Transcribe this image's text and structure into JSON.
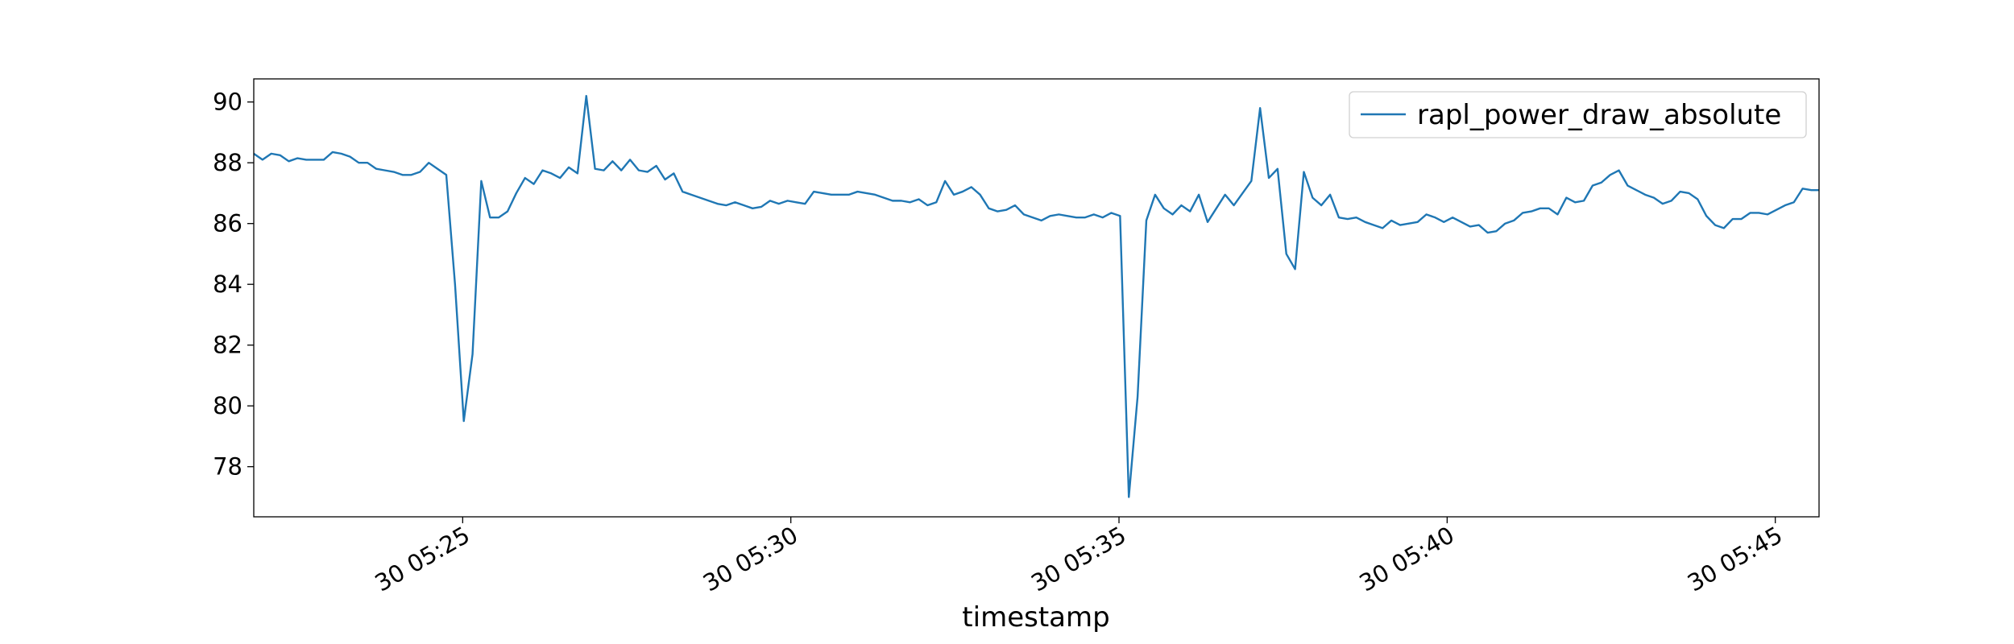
{
  "chart_data": {
    "type": "line",
    "xlabel": "timestamp",
    "legend": "upper right",
    "x": [
      "30 05:21:49",
      "30 05:21:57",
      "30 05:22:05",
      "30 05:22:13",
      "30 05:22:21",
      "30 05:22:29",
      "30 05:22:37",
      "30 05:22:45",
      "30 05:22:53",
      "30 05:23:01",
      "30 05:23:09",
      "30 05:23:17",
      "30 05:23:25",
      "30 05:23:33",
      "30 05:23:41",
      "30 05:23:49",
      "30 05:23:57",
      "30 05:24:05",
      "30 05:24:13",
      "30 05:24:21",
      "30 05:24:29",
      "30 05:24:37",
      "30 05:24:45",
      "30 05:24:53",
      "30 05:25:01",
      "30 05:25:09",
      "30 05:25:17",
      "30 05:25:25",
      "30 05:25:33",
      "30 05:25:41",
      "30 05:25:49",
      "30 05:25:57",
      "30 05:26:05",
      "30 05:26:13",
      "30 05:26:21",
      "30 05:26:29",
      "30 05:26:37",
      "30 05:26:45",
      "30 05:26:53",
      "30 05:27:01",
      "30 05:27:09",
      "30 05:27:17",
      "30 05:27:25",
      "30 05:27:33",
      "30 05:27:41",
      "30 05:27:49",
      "30 05:27:57",
      "30 05:28:05",
      "30 05:28:13",
      "30 05:28:21",
      "30 05:28:29",
      "30 05:28:37",
      "30 05:28:45",
      "30 05:28:53",
      "30 05:29:01",
      "30 05:29:09",
      "30 05:29:17",
      "30 05:29:25",
      "30 05:29:33",
      "30 05:29:41",
      "30 05:29:49",
      "30 05:29:57",
      "30 05:30:05",
      "30 05:30:13",
      "30 05:30:21",
      "30 05:30:29",
      "30 05:30:37",
      "30 05:30:45",
      "30 05:30:53",
      "30 05:31:01",
      "30 05:31:09",
      "30 05:31:17",
      "30 05:31:25",
      "30 05:31:33",
      "30 05:31:41",
      "30 05:31:49",
      "30 05:31:57",
      "30 05:32:05",
      "30 05:32:13",
      "30 05:32:21",
      "30 05:32:29",
      "30 05:32:37",
      "30 05:32:45",
      "30 05:32:53",
      "30 05:33:01",
      "30 05:33:09",
      "30 05:33:17",
      "30 05:33:25",
      "30 05:33:33",
      "30 05:33:41",
      "30 05:33:49",
      "30 05:33:57",
      "30 05:34:05",
      "30 05:34:13",
      "30 05:34:21",
      "30 05:34:29",
      "30 05:34:37",
      "30 05:34:45",
      "30 05:34:53",
      "30 05:35:01",
      "30 05:35:09",
      "30 05:35:17",
      "30 05:35:25",
      "30 05:35:33",
      "30 05:35:41",
      "30 05:35:49",
      "30 05:35:57",
      "30 05:36:05",
      "30 05:36:13",
      "30 05:36:21",
      "30 05:36:29",
      "30 05:36:37",
      "30 05:36:45",
      "30 05:36:53",
      "30 05:37:01",
      "30 05:37:09",
      "30 05:37:17",
      "30 05:37:25",
      "30 05:37:33",
      "30 05:37:41",
      "30 05:37:49",
      "30 05:37:57",
      "30 05:38:05",
      "30 05:38:13",
      "30 05:38:21",
      "30 05:38:29",
      "30 05:38:37",
      "30 05:38:45",
      "30 05:38:53",
      "30 05:39:01",
      "30 05:39:09",
      "30 05:39:17",
      "30 05:39:25",
      "30 05:39:33",
      "30 05:39:41",
      "30 05:39:49",
      "30 05:39:57",
      "30 05:40:05",
      "30 05:40:13",
      "30 05:40:21",
      "30 05:40:29",
      "30 05:40:37",
      "30 05:40:45",
      "30 05:40:53",
      "30 05:41:01",
      "30 05:41:09",
      "30 05:41:17",
      "30 05:41:25",
      "30 05:41:33",
      "30 05:41:41",
      "30 05:41:49",
      "30 05:41:57",
      "30 05:42:05",
      "30 05:42:13",
      "30 05:42:21",
      "30 05:42:29",
      "30 05:42:37",
      "30 05:42:45",
      "30 05:42:53",
      "30 05:43:01",
      "30 05:43:09",
      "30 05:43:17",
      "30 05:43:25",
      "30 05:43:33",
      "30 05:43:41",
      "30 05:43:49",
      "30 05:43:57",
      "30 05:44:05",
      "30 05:44:13",
      "30 05:44:21",
      "30 05:44:29",
      "30 05:44:37",
      "30 05:44:45",
      "30 05:44:53",
      "30 05:45:01",
      "30 05:45:09",
      "30 05:45:17",
      "30 05:45:25",
      "30 05:45:33",
      "30 05:45:41"
    ],
    "series": [
      {
        "name": "rapl_power_draw_absolute",
        "color": "#1f77b4",
        "values": [
          88.3,
          88.1,
          88.3,
          88.25,
          88.05,
          88.15,
          88.1,
          88.1,
          88.1,
          88.35,
          88.3,
          88.2,
          88.0,
          88.0,
          87.8,
          87.75,
          87.7,
          87.6,
          87.6,
          87.7,
          88.0,
          87.8,
          87.6,
          84.0,
          79.5,
          81.7,
          87.4,
          86.2,
          86.2,
          86.4,
          87.0,
          87.5,
          87.3,
          87.75,
          87.65,
          87.5,
          87.85,
          87.65,
          90.2,
          87.8,
          87.75,
          88.05,
          87.75,
          88.1,
          87.75,
          87.7,
          87.9,
          87.45,
          87.65,
          87.05,
          86.95,
          86.85,
          86.75,
          86.65,
          86.6,
          86.7,
          86.6,
          86.5,
          86.55,
          86.75,
          86.65,
          86.75,
          86.7,
          86.65,
          87.05,
          87.0,
          86.95,
          86.95,
          86.95,
          87.05,
          87.0,
          86.95,
          86.85,
          86.75,
          86.75,
          86.7,
          86.8,
          86.6,
          86.7,
          87.4,
          86.95,
          87.05,
          87.2,
          86.95,
          86.5,
          86.4,
          86.45,
          86.6,
          86.3,
          86.2,
          86.1,
          86.25,
          86.3,
          86.25,
          86.2,
          86.2,
          86.3,
          86.2,
          86.35,
          86.25,
          77.0,
          80.3,
          86.1,
          86.95,
          86.5,
          86.3,
          86.6,
          86.4,
          86.95,
          86.05,
          86.5,
          86.95,
          86.6,
          87.0,
          87.4,
          89.8,
          87.5,
          87.8,
          85.0,
          84.5,
          87.7,
          86.85,
          86.6,
          86.95,
          86.2,
          86.15,
          86.2,
          86.05,
          85.95,
          85.85,
          86.1,
          85.95,
          86.0,
          86.05,
          86.3,
          86.2,
          86.05,
          86.2,
          86.05,
          85.9,
          85.95,
          85.7,
          85.75,
          86.0,
          86.1,
          86.35,
          86.4,
          86.5,
          86.5,
          86.3,
          86.85,
          86.7,
          86.75,
          87.25,
          87.35,
          87.6,
          87.75,
          87.25,
          87.1,
          86.95,
          86.85,
          86.65,
          86.75,
          87.05,
          87.0,
          86.8,
          86.25,
          85.95,
          85.85,
          86.15,
          86.15,
          86.35,
          86.35,
          86.3,
          86.45,
          86.6,
          86.7,
          87.15,
          87.1,
          87.1
        ]
      }
    ],
    "xlim": [
      "30 05:21:49",
      "30 05:45:40"
    ],
    "xticks": [
      "30 05:25",
      "30 05:30",
      "30 05:35",
      "30 05:40",
      "30 05:45"
    ],
    "ylim": [
      76.35,
      90.76
    ],
    "yticks": [
      78,
      80,
      82,
      84,
      86,
      88,
      90
    ]
  }
}
